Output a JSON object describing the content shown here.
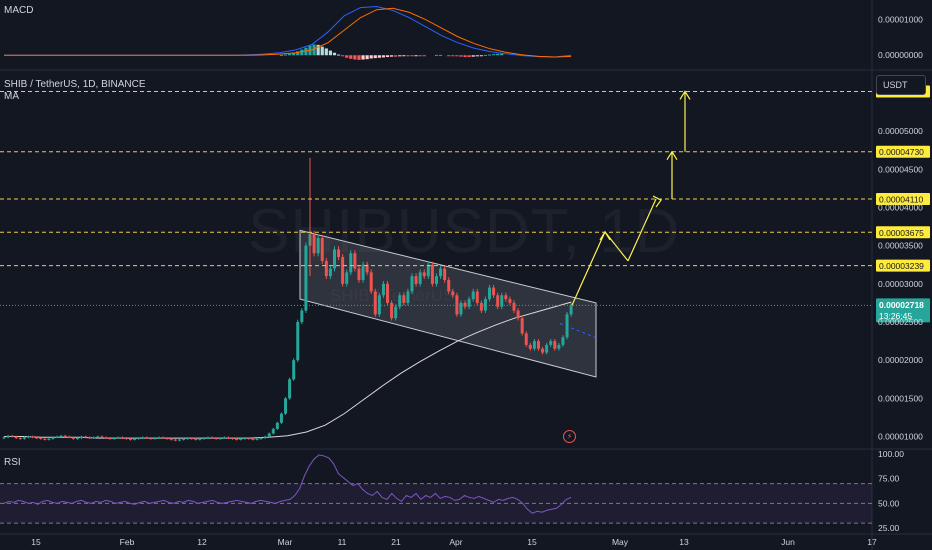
{
  "header": {
    "symbol": "SHIB / TetherUS, 1D, BINANCE",
    "indicator_ma": "MA",
    "currency_button": "USDT",
    "watermark": "SHIBUSDT, 1D",
    "watermark_sub": "SHIB / TetherUS",
    "macd_title": "MACD",
    "rsi_title": "RSI",
    "countdown": "13:26:45"
  },
  "chart_data": [
    {
      "type": "candlestick",
      "title": "SHIB / TetherUS, 1D, BINANCE",
      "x_tick_labels": [
        "15",
        "Feb",
        "12",
        "Mar",
        "11",
        "21",
        "Apr",
        "15",
        "May",
        "13",
        "Jun",
        "17"
      ],
      "y_tick_labels": [
        "0.00005000",
        "0.00004500",
        "0.00004000",
        "0.00003500",
        "0.00003000",
        "0.00002500",
        "0.00002000",
        "0.00001500",
        "0.00001000"
      ],
      "ylim": [
        8.5e-06,
        5.8e-05
      ],
      "current_price": 2.718e-05,
      "current_price_label": "0.00002718",
      "level_labels": [
        "0.00005519",
        "0.00004730",
        "0.00004110",
        "0.00003675",
        "0.00003239"
      ],
      "levels": [
        5.519e-05,
        4.73e-05,
        4.11e-05,
        3.675e-05,
        3.239e-05
      ],
      "colors": {
        "up": "#26a69a",
        "down": "#ef5350",
        "ma": "#d9d9d9",
        "level": "#f2c94c",
        "projection": "#fff44f"
      },
      "candles_open": [
        9.8e-06,
        9.9e-06,
        1.01e-05,
        1e-05,
        9.8e-06,
        9.7e-06,
        9.9e-06,
        1e-05,
        9.9e-06,
        9.8e-06,
        9.7e-06,
        9.6e-06,
        9.7e-06,
        9.9e-06,
        1e-05,
        1.01e-05,
        1e-05,
        9.9e-06,
        9.7e-06,
        9.8e-06,
        1e-05,
        9.9e-06,
        9.8e-06,
        9.9e-06,
        1e-05,
        9.9e-06,
        9.8e-06,
        9.7e-06,
        9.8e-06,
        9.9e-06,
        9.8e-06,
        9.7e-06,
        9.6e-06,
        9.7e-06,
        9.8e-06,
        9.9e-06,
        9.8e-06,
        9.7e-06,
        9.8e-06,
        9.9e-06,
        9.8e-06,
        9.7e-06,
        9.6e-06,
        9.5e-06,
        9.6e-06,
        9.7e-06,
        9.8e-06,
        9.7e-06,
        9.6e-06,
        9.7e-06,
        9.8e-06,
        9.9e-06,
        9.8e-06,
        9.7e-06,
        9.8e-06,
        9.9e-06,
        9.8e-06,
        9.7e-06,
        9.6e-06,
        9.7e-06,
        9.8e-06,
        9.7e-06,
        9.6e-06,
        9.7e-06,
        9.8e-06,
        1e-05,
        1.04e-05,
        1.1e-05,
        1.18e-05,
        1.3e-05,
        1.5e-05,
        1.75e-05,
        2e-05,
        2.5e-05,
        2.65e-05,
        3.5e-05,
        3.65e-05,
        3.4e-05,
        3.6e-05,
        3.3e-05,
        3.1e-05,
        3.2e-05,
        3.45e-05,
        3.35e-05,
        3e-05,
        3.15e-05,
        3.4e-05,
        3.2e-05,
        3.05e-05,
        3.25e-05,
        3.15e-05,
        2.9e-05,
        2.6e-05,
        2.85e-05,
        3e-05,
        2.75e-05,
        2.55e-05,
        2.7e-05,
        2.85e-05,
        2.75e-05,
        2.9e-05,
        3.1e-05,
        3e-05,
        3.15e-05,
        3.1e-05,
        3.25e-05,
        3e-05,
        3.1e-05,
        3.2e-05,
        3.05e-05,
        2.9e-05,
        2.85e-05,
        2.6e-05,
        2.75e-05,
        2.7e-05,
        2.8e-05,
        2.9e-05,
        2.75e-05,
        2.65e-05,
        2.8e-05,
        2.95e-05,
        2.85e-05,
        2.7e-05,
        2.85e-05,
        2.8e-05,
        2.75e-05,
        2.65e-05,
        2.55e-05,
        2.35e-05,
        2.2e-05,
        2.15e-05,
        2.25e-05,
        2.15e-05,
        2.1e-05,
        2.2e-05,
        2.25e-05,
        2.15e-05,
        2.2e-05,
        2.3e-05,
        2.6e-05
      ],
      "candles_close": [
        9.9e-06,
        1.01e-05,
        1e-05,
        9.8e-06,
        9.7e-06,
        9.9e-06,
        1e-05,
        9.9e-06,
        9.8e-06,
        9.7e-06,
        9.6e-06,
        9.7e-06,
        9.9e-06,
        1e-05,
        1.01e-05,
        1e-05,
        9.9e-06,
        9.7e-06,
        9.8e-06,
        1e-05,
        9.9e-06,
        9.8e-06,
        9.9e-06,
        1e-05,
        9.9e-06,
        9.8e-06,
        9.7e-06,
        9.8e-06,
        9.9e-06,
        9.8e-06,
        9.7e-06,
        9.6e-06,
        9.7e-06,
        9.8e-06,
        9.9e-06,
        9.8e-06,
        9.7e-06,
        9.8e-06,
        9.9e-06,
        9.8e-06,
        9.7e-06,
        9.6e-06,
        9.5e-06,
        9.6e-06,
        9.7e-06,
        9.8e-06,
        9.7e-06,
        9.6e-06,
        9.7e-06,
        9.8e-06,
        9.9e-06,
        9.8e-06,
        9.7e-06,
        9.8e-06,
        9.9e-06,
        9.8e-06,
        9.7e-06,
        9.6e-06,
        9.7e-06,
        9.8e-06,
        9.7e-06,
        9.6e-06,
        9.7e-06,
        9.8e-06,
        1e-05,
        1.04e-05,
        1.1e-05,
        1.18e-05,
        1.3e-05,
        1.5e-05,
        1.75e-05,
        2e-05,
        2.5e-05,
        2.65e-05,
        3.5e-05,
        3.65e-05,
        3.4e-05,
        3.6e-05,
        3.3e-05,
        3.1e-05,
        3.2e-05,
        3.45e-05,
        3.35e-05,
        3e-05,
        3.15e-05,
        3.4e-05,
        3.2e-05,
        3.05e-05,
        3.25e-05,
        3.15e-05,
        2.9e-05,
        2.6e-05,
        2.85e-05,
        3e-05,
        2.75e-05,
        2.55e-05,
        2.7e-05,
        2.85e-05,
        2.75e-05,
        2.9e-05,
        3.1e-05,
        3e-05,
        3.15e-05,
        3.1e-05,
        3.25e-05,
        3e-05,
        3.1e-05,
        3.2e-05,
        3.05e-05,
        2.9e-05,
        2.85e-05,
        2.6e-05,
        2.75e-05,
        2.7e-05,
        2.8e-05,
        2.9e-05,
        2.75e-05,
        2.65e-05,
        2.8e-05,
        2.95e-05,
        2.85e-05,
        2.7e-05,
        2.85e-05,
        2.8e-05,
        2.75e-05,
        2.65e-05,
        2.55e-05,
        2.35e-05,
        2.2e-05,
        2.15e-05,
        2.25e-05,
        2.15e-05,
        2.1e-05,
        2.2e-05,
        2.25e-05,
        2.15e-05,
        2.2e-05,
        2.3e-05,
        2.6e-05,
        2.72e-05
      ],
      "ma_values": [
        1e-05,
        1e-05,
        9.9e-06,
        9.9e-06,
        9.9e-06,
        9.8e-06,
        9.8e-06,
        9.8e-06,
        9.8e-06,
        9.8e-06,
        9.8e-06,
        9.8e-06,
        9.8e-06,
        9.8e-06,
        9.9e-06,
        1.01e-05,
        1.06e-05,
        1.15e-05,
        1.3e-05,
        1.48e-05,
        1.66e-05,
        1.83e-05,
        1.98e-05,
        2.12e-05,
        2.25e-05,
        2.36e-05,
        2.46e-05,
        2.55e-05,
        2.62e-05,
        2.69e-05,
        2.76e-05
      ],
      "channel_upper": [
        [
          3.7e-05,
          0
        ],
        [
          2.75e-05,
          1
        ]
      ],
      "channel_lower": [
        [
          2.8e-05,
          0
        ],
        [
          1.78e-05,
          1
        ]
      ],
      "projection_path": [
        2.72e-05,
        3.68e-05,
        3.3e-05,
        4.11e-05,
        4.73e-05,
        5.52e-05
      ]
    },
    {
      "type": "bar",
      "title": "MACD",
      "y_tick_labels": [
        "0.00001000",
        "0.00000000"
      ],
      "ylim": [
        -3e-06,
        1.43e-05
      ],
      "histogram": [
        0,
        0,
        0,
        0,
        0,
        0,
        0,
        0,
        0,
        0,
        0,
        0,
        0,
        0,
        0,
        0,
        0,
        0,
        0,
        0,
        0,
        0,
        0,
        0,
        0,
        0,
        0,
        0,
        0,
        0,
        0,
        0,
        0,
        0,
        0,
        0,
        0,
        0,
        0,
        0,
        0,
        0,
        0,
        0,
        0,
        0,
        0,
        0,
        0,
        0,
        0,
        0,
        0,
        0,
        0,
        0,
        0,
        0,
        0,
        0,
        0,
        0,
        0,
        0,
        1e-07,
        2e-07,
        4e-07,
        7e-07,
        1.1e-06,
        1.6e-06,
        2.1e-06,
        2.7e-06,
        3e-06,
        2.9e-06,
        2.4e-06,
        1.9e-06,
        1.3e-06,
        7e-07,
        2e-07,
        -3e-07,
        -7e-07,
        -1e-06,
        -1.2e-06,
        -1.3e-06,
        -1.2e-06,
        -1.1e-06,
        -9e-07,
        -8e-07,
        -7e-07,
        -6e-07,
        -5e-07,
        -4e-07,
        -4e-07,
        -3e-07,
        -2e-07,
        -2e-07,
        -2e-07,
        -1e-07,
        -1e-07,
        -1e-07,
        0,
        0,
        1e-07,
        1e-07,
        0,
        -1e-07,
        -2e-07,
        -3e-07,
        -4e-07,
        -5e-07,
        -5e-07,
        -4e-07,
        -3e-07,
        -1e-07,
        1e-07,
        2e-07,
        3e-07,
        4e-07,
        5e-07
      ],
      "macd_line": [
        0,
        0,
        0,
        0,
        0,
        0,
        0,
        0,
        0,
        0,
        0,
        0,
        0,
        0,
        0,
        1e-07,
        3e-07,
        7e-07,
        1.5e-06,
        3e-06,
        6.5e-06,
        1.1e-05,
        1.33e-05,
        1.36e-05,
        1.25e-05,
        1.05e-05,
        8e-06,
        5.5e-06,
        3.5e-06,
        2e-06,
        1e-06,
        4e-07,
        -1e-07,
        -4e-07,
        -5e-07,
        0.0
      ],
      "signal_line": [
        0,
        0,
        0,
        0,
        0,
        0,
        0,
        0,
        0,
        0,
        0,
        0,
        0,
        0,
        0,
        0.0,
        1e-07,
        3e-07,
        7e-07,
        1.5e-06,
        3.5e-06,
        7e-06,
        1.05e-05,
        1.27e-05,
        1.31e-05,
        1.2e-05,
        1e-05,
        7.6e-06,
        5.2e-06,
        3.3e-06,
        1.8e-06,
        8e-07,
        1e-07,
        -3e-07,
        -5e-07,
        -3e-07
      ]
    },
    {
      "type": "line",
      "title": "RSI",
      "y_tick_labels": [
        "100.00",
        "75.00",
        "50.00",
        "25.00"
      ],
      "ylim": [
        20,
        104
      ],
      "bands": [
        70,
        50,
        30
      ],
      "values": [
        50,
        52,
        51,
        53,
        52,
        50,
        51,
        49,
        52,
        53,
        51,
        50,
        52,
        51,
        50,
        52,
        53,
        51,
        50,
        52,
        51,
        53,
        52,
        50,
        51,
        52,
        50,
        49,
        51,
        52,
        50,
        51,
        52,
        53,
        51,
        50,
        52,
        51,
        53,
        52,
        50,
        51,
        52,
        53,
        51,
        50,
        51,
        52,
        53,
        52,
        51,
        50,
        52,
        53,
        52,
        51,
        50,
        52,
        53,
        54,
        58,
        65,
        78,
        88,
        95,
        99,
        98,
        96,
        90,
        80,
        76,
        72,
        68,
        70,
        64,
        60,
        58,
        62,
        56,
        54,
        60,
        55,
        52,
        58,
        56,
        60,
        54,
        58,
        56,
        60,
        55,
        57,
        56,
        53,
        54,
        58,
        56,
        55,
        57,
        55,
        53,
        51,
        54,
        53,
        55,
        56,
        54,
        50,
        44,
        40,
        42,
        41,
        43,
        44,
        45,
        49,
        54,
        56
      ]
    },
    {
      "type": "axis",
      "title": "",
      "x_tick_labels": [
        "15",
        "Feb",
        "12",
        "Mar",
        "11",
        "21",
        "Apr",
        "15",
        "May",
        "13",
        "Jun",
        "17"
      ]
    }
  ]
}
